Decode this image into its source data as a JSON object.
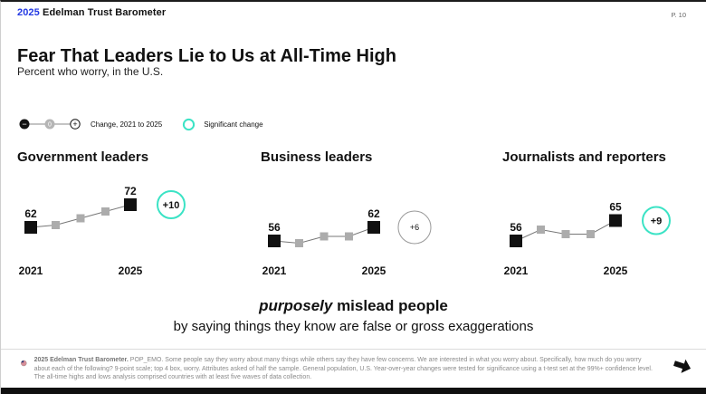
{
  "header": {
    "year": "2025",
    "brand": "Edelman Trust Barometer",
    "page": "P. 10"
  },
  "title": "Fear That Leaders Lie to Us at All-Time High",
  "subtitle": "Percent who worry, in the U.S.",
  "legend": {
    "change_label": "Change, 2021 to 2025",
    "significant_label": "Significant change",
    "minus_glyph": "−",
    "zero_glyph": "0",
    "plus_glyph": "+"
  },
  "colors": {
    "brand_blue": "#2238E3",
    "accent_teal": "#3BE3C5",
    "point_black": "#111111",
    "point_gray": "#ACACAC",
    "line_gray": "#777777",
    "nonsig_gray": "#999999"
  },
  "chart_data": [
    {
      "type": "line",
      "title": "Government leaders",
      "x": [
        "2021",
        "2022",
        "2023",
        "2024",
        "2025"
      ],
      "values": [
        62,
        63,
        66,
        69,
        72
      ],
      "labeled_values": {
        "2021": 62,
        "2025": 72
      },
      "change": "+10",
      "significant": true,
      "x_axis_labels": [
        "2021",
        "2025"
      ],
      "grid": false,
      "legend_position": "top-left-of-slide"
    },
    {
      "type": "line",
      "title": "Business leaders",
      "x": [
        "2021",
        "2022",
        "2023",
        "2024",
        "2025"
      ],
      "values": [
        56,
        55,
        58,
        58,
        62
      ],
      "labeled_values": {
        "2021": 56,
        "2025": 62
      },
      "change": "+6",
      "significant": false,
      "x_axis_labels": [
        "2021",
        "2025"
      ],
      "grid": false,
      "legend_position": "top-left-of-slide"
    },
    {
      "type": "line",
      "title": "Journalists and reporters",
      "x": [
        "2021",
        "2022",
        "2023",
        "2024",
        "2025"
      ],
      "values": [
        56,
        61,
        59,
        59,
        65
      ],
      "labeled_values": {
        "2021": 56,
        "2025": 65
      },
      "change": "+9",
      "significant": true,
      "x_axis_labels": [
        "2021",
        "2025"
      ],
      "grid": false,
      "legend_position": "top-left-of-slide"
    }
  ],
  "statement": {
    "emphasis": "purposely",
    "line1_rest": " mislead people",
    "line2": "by saying things they know are false or gross exaggerations"
  },
  "footer": {
    "source": "2025 Edelman Trust Barometer.",
    "methodology": "POP_EMO. Some people say they worry about many things while others say they have few concerns. We are interested in what you worry about. Specifically, how much do you worry about each of the following? 9-point scale; top 4 box, worry. Attributes asked of half the sample. General population, U.S. Year-over-year changes were tested for significance using a t-test set at the 99%+ confidence level. The all-time highs and lows analysis comprised countries with at least five waves of data collection."
  }
}
